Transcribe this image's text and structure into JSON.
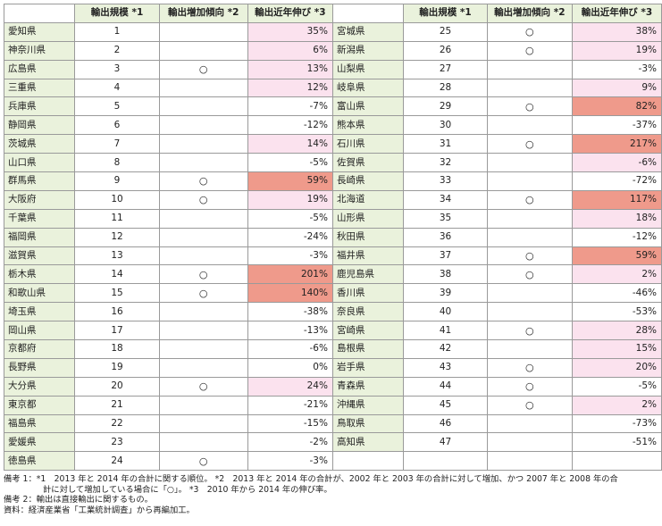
{
  "colors": {
    "pref_bg": "#eaf2dc",
    "header_bg": "#eaf2dc",
    "light_pink": "#fbe2ee",
    "salmon": "#ef9a8b"
  },
  "headers": {
    "rank": "輸出規模 *1",
    "trend": "輸出増加傾向 *2",
    "growth": "輸出近年伸び *3"
  },
  "left": [
    {
      "pref": "愛知県",
      "rank": "1",
      "trend": "",
      "growth": "35%",
      "hl": "light"
    },
    {
      "pref": "神奈川県",
      "rank": "2",
      "trend": "",
      "growth": "6%",
      "hl": "light"
    },
    {
      "pref": "広島県",
      "rank": "3",
      "trend": "○",
      "growth": "13%",
      "hl": "light"
    },
    {
      "pref": "三重県",
      "rank": "4",
      "trend": "",
      "growth": "12%",
      "hl": "light"
    },
    {
      "pref": "兵庫県",
      "rank": "5",
      "trend": "",
      "growth": "-7%",
      "hl": ""
    },
    {
      "pref": "静岡県",
      "rank": "6",
      "trend": "",
      "growth": "-12%",
      "hl": ""
    },
    {
      "pref": "茨城県",
      "rank": "7",
      "trend": "",
      "growth": "14%",
      "hl": "light"
    },
    {
      "pref": "山口県",
      "rank": "8",
      "trend": "",
      "growth": "-5%",
      "hl": ""
    },
    {
      "pref": "群馬県",
      "rank": "9",
      "trend": "○",
      "growth": "59%",
      "hl": "strong"
    },
    {
      "pref": "大阪府",
      "rank": "10",
      "trend": "○",
      "growth": "19%",
      "hl": "light"
    },
    {
      "pref": "千葉県",
      "rank": "11",
      "trend": "",
      "growth": "-5%",
      "hl": ""
    },
    {
      "pref": "福岡県",
      "rank": "12",
      "trend": "",
      "growth": "-24%",
      "hl": ""
    },
    {
      "pref": "滋賀県",
      "rank": "13",
      "trend": "",
      "growth": "-3%",
      "hl": ""
    },
    {
      "pref": "栃木県",
      "rank": "14",
      "trend": "○",
      "growth": "201%",
      "hl": "strong"
    },
    {
      "pref": "和歌山県",
      "rank": "15",
      "trend": "○",
      "growth": "140%",
      "hl": "strong"
    },
    {
      "pref": "埼玉県",
      "rank": "16",
      "trend": "",
      "growth": "-38%",
      "hl": ""
    },
    {
      "pref": "岡山県",
      "rank": "17",
      "trend": "",
      "growth": "-13%",
      "hl": ""
    },
    {
      "pref": "京都府",
      "rank": "18",
      "trend": "",
      "growth": "-6%",
      "hl": ""
    },
    {
      "pref": "長野県",
      "rank": "19",
      "trend": "",
      "growth": "0%",
      "hl": ""
    },
    {
      "pref": "大分県",
      "rank": "20",
      "trend": "○",
      "growth": "24%",
      "hl": "light"
    },
    {
      "pref": "東京都",
      "rank": "21",
      "trend": "",
      "growth": "-21%",
      "hl": ""
    },
    {
      "pref": "福島県",
      "rank": "22",
      "trend": "",
      "growth": "-15%",
      "hl": ""
    },
    {
      "pref": "愛媛県",
      "rank": "23",
      "trend": "",
      "growth": "-2%",
      "hl": ""
    },
    {
      "pref": "徳島県",
      "rank": "24",
      "trend": "○",
      "growth": "-3%",
      "hl": ""
    }
  ],
  "right": [
    {
      "pref": "宮城県",
      "rank": "25",
      "trend": "○",
      "growth": "38%",
      "hl": "light"
    },
    {
      "pref": "新潟県",
      "rank": "26",
      "trend": "○",
      "growth": "19%",
      "hl": "light"
    },
    {
      "pref": "山梨県",
      "rank": "27",
      "trend": "",
      "growth": "-3%",
      "hl": ""
    },
    {
      "pref": "岐阜県",
      "rank": "28",
      "trend": "",
      "growth": "9%",
      "hl": "light"
    },
    {
      "pref": "富山県",
      "rank": "29",
      "trend": "○",
      "growth": "82%",
      "hl": "strong"
    },
    {
      "pref": "熊本県",
      "rank": "30",
      "trend": "",
      "growth": "-37%",
      "hl": ""
    },
    {
      "pref": "石川県",
      "rank": "31",
      "trend": "○",
      "growth": "217%",
      "hl": "strong"
    },
    {
      "pref": "佐賀県",
      "rank": "32",
      "trend": "",
      "growth": "-6%",
      "hl": "light"
    },
    {
      "pref": "長崎県",
      "rank": "33",
      "trend": "",
      "growth": "-72%",
      "hl": ""
    },
    {
      "pref": "北海道",
      "rank": "34",
      "trend": "○",
      "growth": "117%",
      "hl": "strong"
    },
    {
      "pref": "山形県",
      "rank": "35",
      "trend": "",
      "growth": "18%",
      "hl": "light"
    },
    {
      "pref": "秋田県",
      "rank": "36",
      "trend": "",
      "growth": "-12%",
      "hl": ""
    },
    {
      "pref": "福井県",
      "rank": "37",
      "trend": "○",
      "growth": "59%",
      "hl": "strong"
    },
    {
      "pref": "鹿児島県",
      "rank": "38",
      "trend": "○",
      "growth": "2%",
      "hl": "light"
    },
    {
      "pref": "香川県",
      "rank": "39",
      "trend": "",
      "growth": "-46%",
      "hl": ""
    },
    {
      "pref": "奈良県",
      "rank": "40",
      "trend": "",
      "growth": "-53%",
      "hl": ""
    },
    {
      "pref": "宮崎県",
      "rank": "41",
      "trend": "○",
      "growth": "28%",
      "hl": "light"
    },
    {
      "pref": "島根県",
      "rank": "42",
      "trend": "",
      "growth": "15%",
      "hl": "light"
    },
    {
      "pref": "岩手県",
      "rank": "43",
      "trend": "○",
      "growth": "20%",
      "hl": "light"
    },
    {
      "pref": "青森県",
      "rank": "44",
      "trend": "○",
      "growth": "-5%",
      "hl": ""
    },
    {
      "pref": "沖縄県",
      "rank": "45",
      "trend": "○",
      "growth": "2%",
      "hl": "light"
    },
    {
      "pref": "鳥取県",
      "rank": "46",
      "trend": "",
      "growth": "-73%",
      "hl": ""
    },
    {
      "pref": "高知県",
      "rank": "47",
      "trend": "",
      "growth": "-51%",
      "hl": ""
    },
    {
      "pref": "",
      "rank": "",
      "trend": "",
      "growth": "",
      "hl": ""
    }
  ],
  "notes": {
    "line1": "備考 1：*1　2013 年と 2014 年の合計に関する順位。 *2　2013 年と 2014 年の合計が、2002 年と 2003 年の合計に対して増加、かつ 2007 年と 2008 年の合",
    "line2": "計に対して増加している場合に「○」。 *3　2010 年から 2014 年の伸び率。",
    "line3": "備考 2：輸出は直接輸出に関するもの。",
    "line4": "資料：経済産業省「工業統計調査」から再編加工。"
  }
}
